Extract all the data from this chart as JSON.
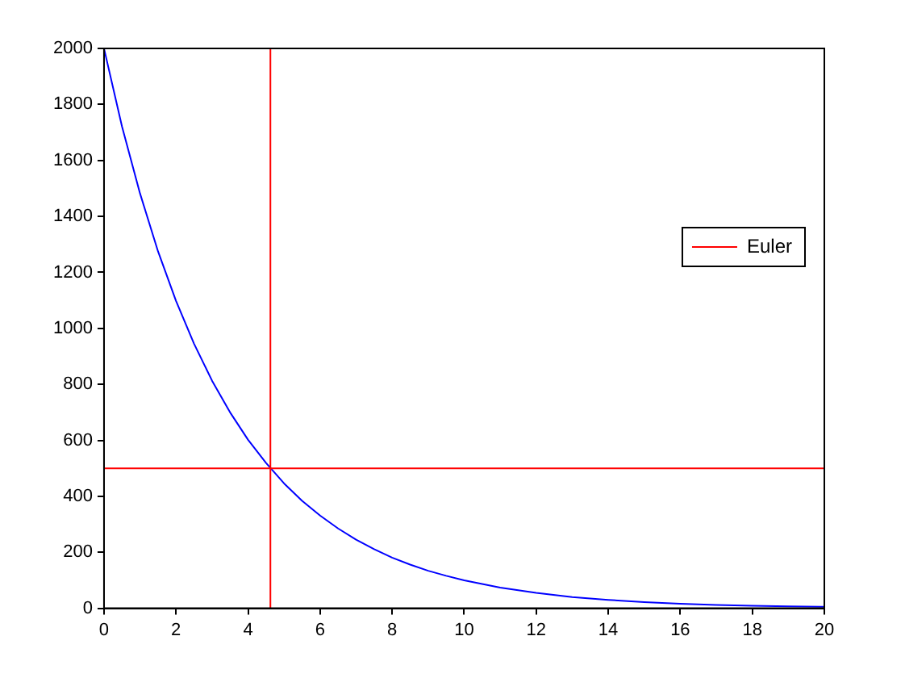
{
  "chart_data": {
    "type": "line",
    "xlim": [
      0,
      20
    ],
    "ylim": [
      0,
      2000
    ],
    "xticks": [
      0,
      2,
      4,
      6,
      8,
      10,
      12,
      14,
      16,
      18,
      20
    ],
    "yticks": [
      0,
      200,
      400,
      600,
      800,
      1000,
      1200,
      1400,
      1600,
      1800,
      2000
    ],
    "grid": false,
    "legend": "right",
    "marker": "none",
    "line_style": "solid",
    "series": [
      {
        "name": "Euler",
        "color": "#ff0000",
        "x": [
          0,
          20
        ],
        "values": [
          500,
          500
        ]
      },
      {
        "color": "#0000ff",
        "x": [
          0,
          0.5,
          1,
          1.5,
          2,
          2.5,
          3,
          3.5,
          4,
          4.5,
          5,
          5.5,
          6,
          6.5,
          7,
          7.5,
          8,
          8.5,
          9,
          9.5,
          10,
          11,
          12,
          13,
          14,
          15,
          16,
          17,
          18,
          19,
          20
        ],
        "values": [
          2000,
          1721,
          1482,
          1275,
          1098,
          945,
          813,
          700,
          602,
          519,
          446,
          384,
          331,
          285,
          245,
          211,
          181,
          156,
          134,
          116,
          100,
          74,
          55,
          40,
          30,
          22,
          16,
          12,
          9,
          7,
          5
        ]
      }
    ],
    "ref_lines": [
      {
        "axis": "x",
        "value": 4.62,
        "color": "#ff0000"
      }
    ]
  }
}
